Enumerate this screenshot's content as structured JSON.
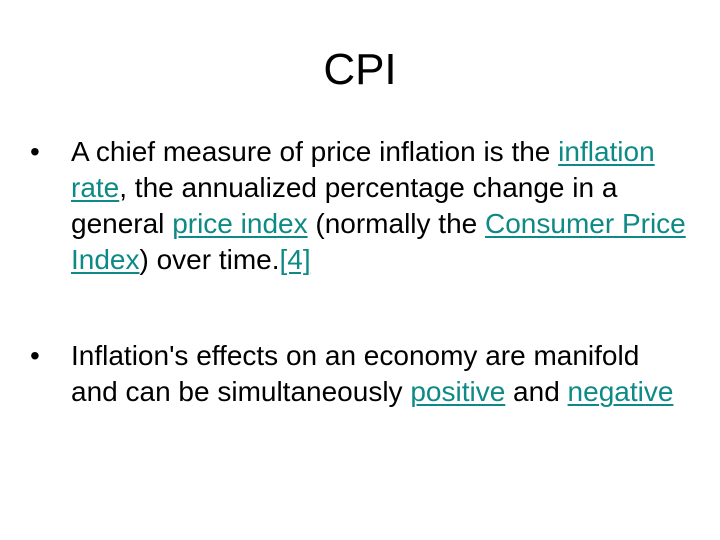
{
  "slide": {
    "title": "CPI",
    "bullet_symbol": "•",
    "accent_link_color": "#0e8a86",
    "bullets": [
      {
        "t1": "A chief measure of price inflation is the ",
        "link1": "inflation rate",
        "t2": ", the annualized percentage change in a general ",
        "link2": "price index",
        "t3": " (normally the ",
        "link3": "Consumer Price Index",
        "t4": ") over time.",
        "link4": "[4]"
      },
      {
        "t1": "Inflation's effects on an economy are manifold and can be simultaneously ",
        "link1": "positive",
        "t2": " and ",
        "link2": "negative"
      }
    ]
  }
}
